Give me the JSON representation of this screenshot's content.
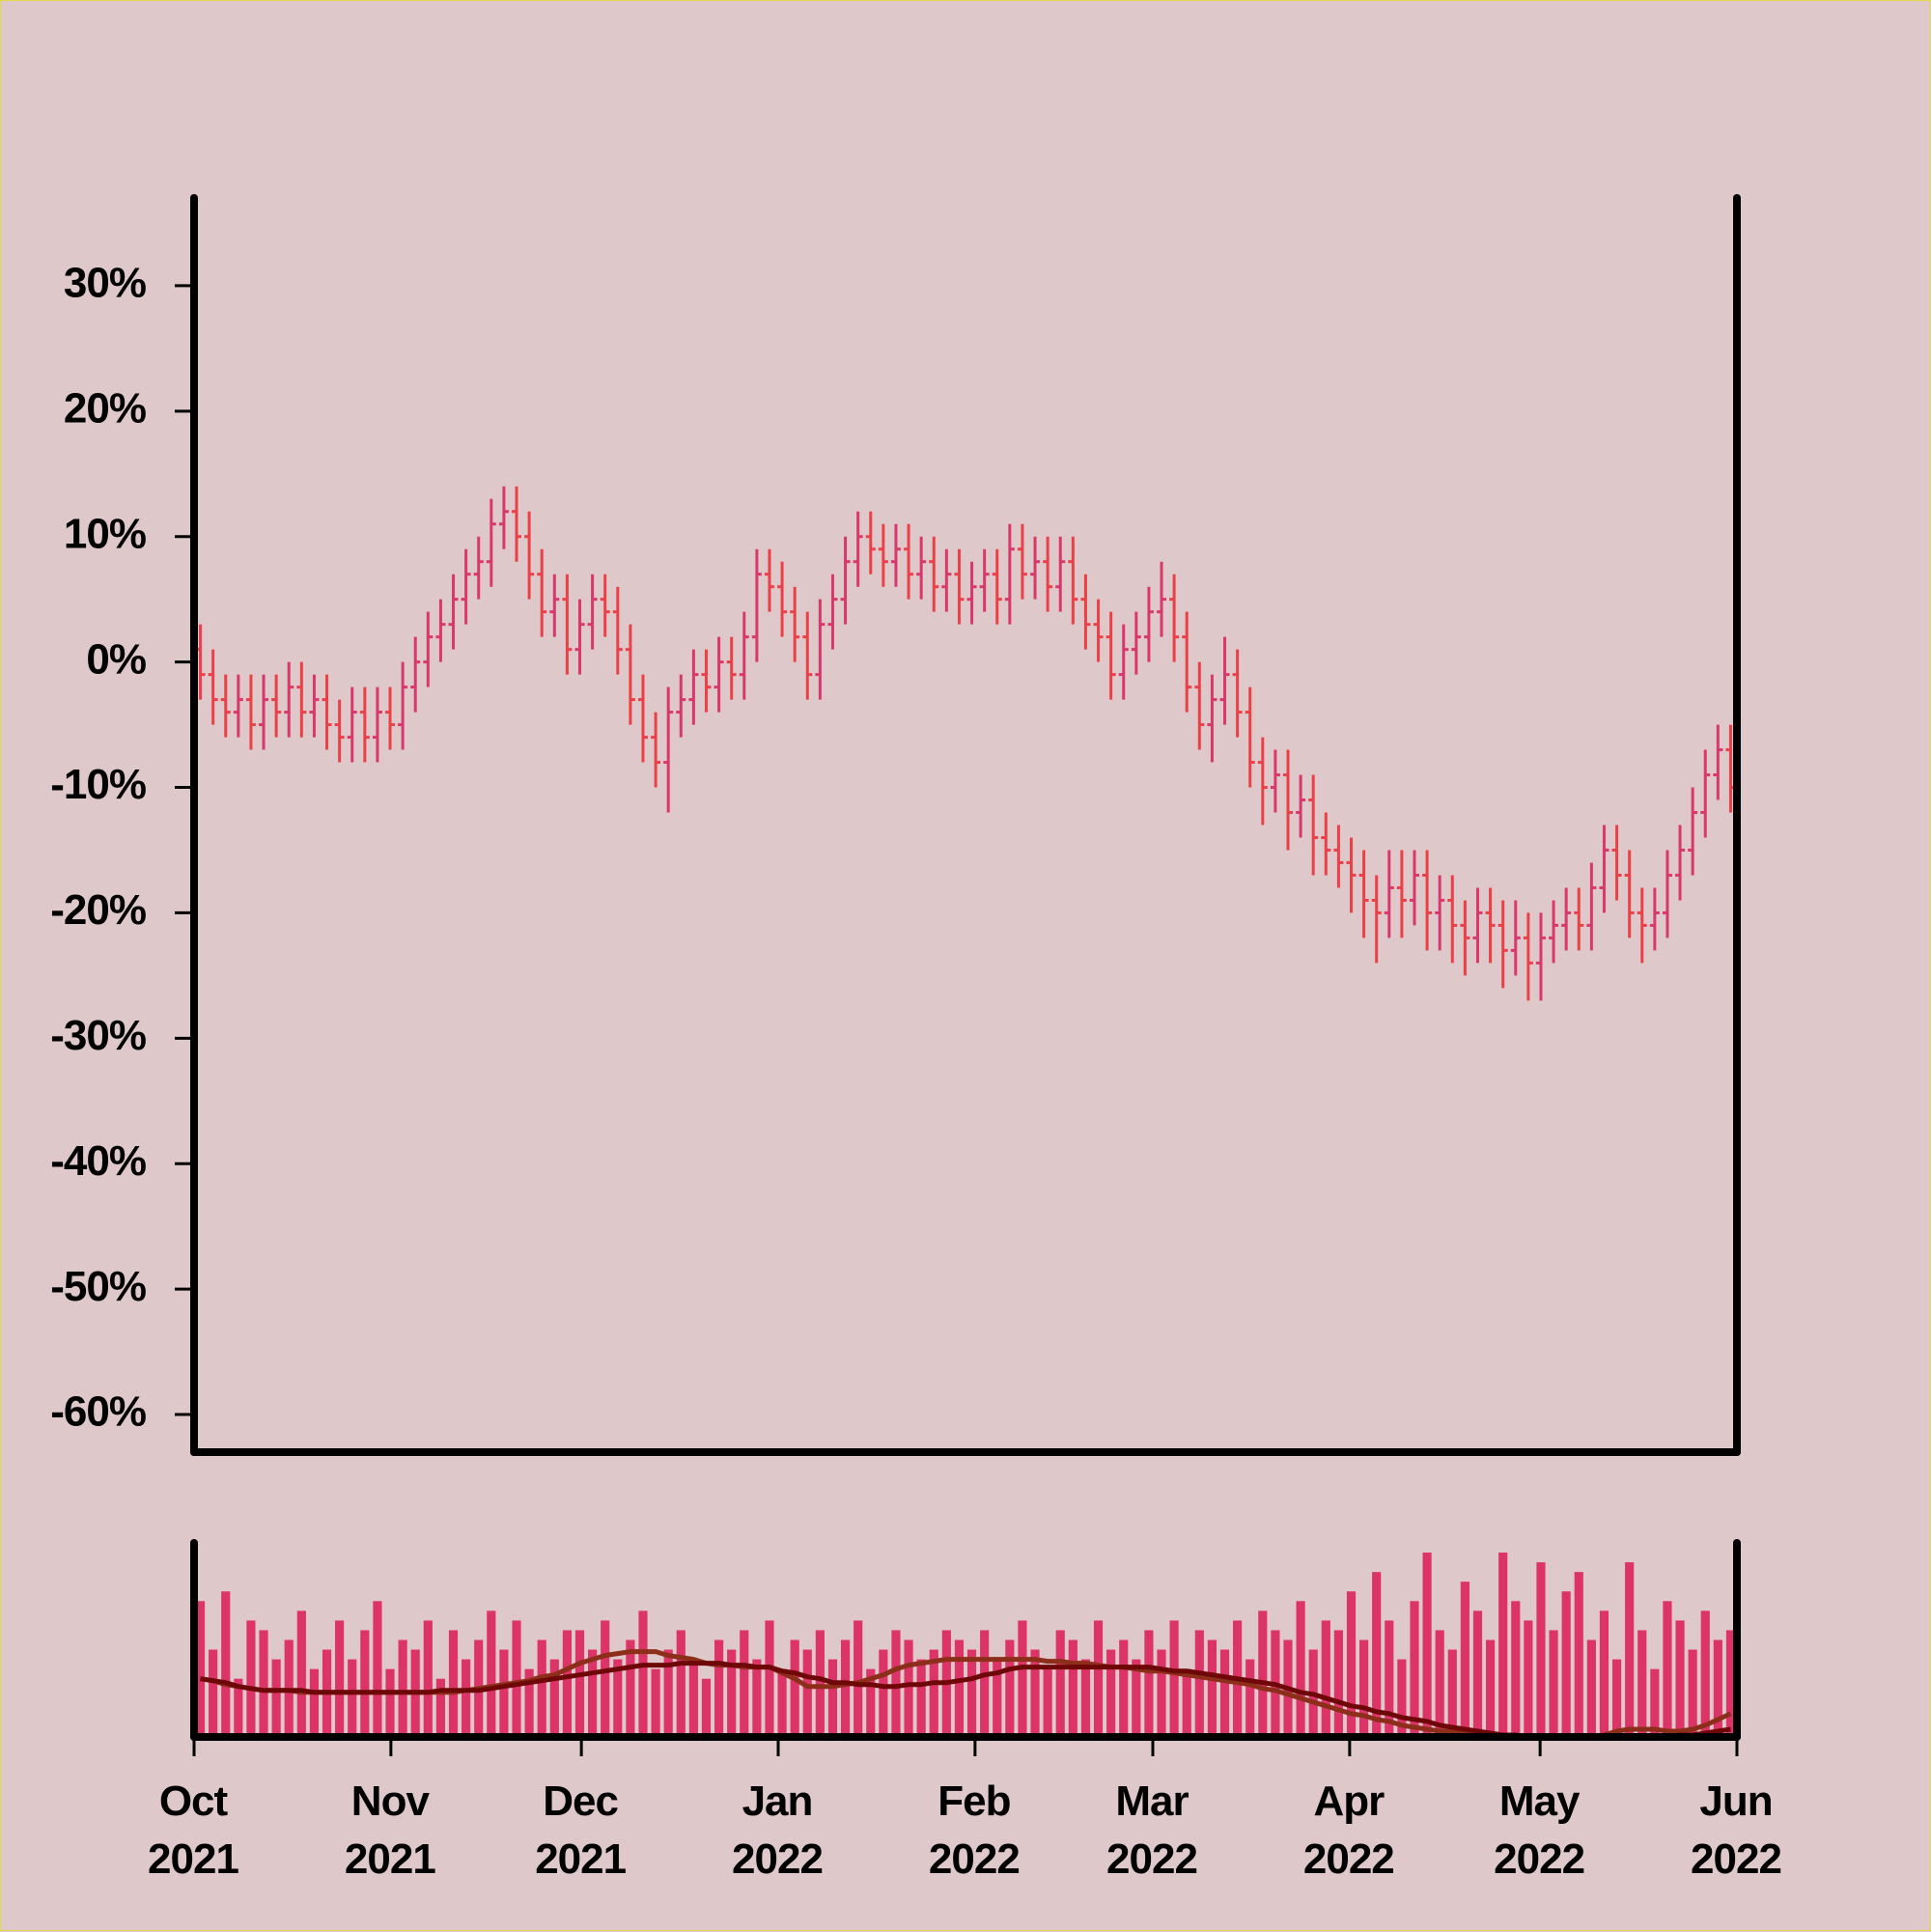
{
  "chart_data": [
    {
      "type": "ohlc",
      "xlim": [
        0,
        243
      ],
      "ylim": [
        -63,
        37
      ],
      "yticks": [
        {
          "value": 30,
          "label": "30%"
        },
        {
          "value": 20,
          "label": "20%"
        },
        {
          "value": 10,
          "label": "10%"
        },
        {
          "value": 0,
          "label": "0%"
        },
        {
          "value": -10,
          "label": "-10%"
        },
        {
          "value": -20,
          "label": "-20%"
        },
        {
          "value": -30,
          "label": "-30%"
        },
        {
          "value": -40,
          "label": "-40%"
        },
        {
          "value": -50,
          "label": "-50%"
        },
        {
          "value": -60,
          "label": "-60%"
        }
      ],
      "up_color": "#d8386c",
      "down_color": "#ec4048",
      "open": [
        1,
        -1,
        -3,
        -4,
        -3,
        -5,
        -3,
        -4,
        -2,
        -4,
        -3,
        -5,
        -6,
        -4,
        -6,
        -4,
        -5,
        -2,
        0,
        2,
        3,
        5,
        7,
        8,
        11,
        12,
        10,
        7,
        4,
        5,
        1,
        3,
        5,
        4,
        1,
        -3,
        -6,
        -8,
        -4,
        -3,
        -1,
        -2,
        0,
        -1,
        2,
        7,
        6,
        4,
        2,
        -1,
        3,
        5,
        8,
        10,
        9,
        8,
        9,
        7,
        8,
        6,
        7,
        5,
        6,
        7,
        5,
        9,
        7,
        8,
        6,
        8,
        5,
        3,
        2,
        -1,
        1,
        2,
        4,
        5,
        2,
        -2,
        -5,
        -3,
        -1,
        -4,
        -8,
        -10,
        -9,
        -12,
        -11,
        -14,
        -15,
        -16,
        -17,
        -19,
        -20,
        -18,
        -19,
        -17,
        -20,
        -19,
        -21,
        -22,
        -20,
        -21,
        -23,
        -22,
        -24,
        -22,
        -21,
        -20,
        -21,
        -18,
        -15,
        -17,
        -20,
        -21,
        -20,
        -17,
        -15,
        -12,
        -9,
        -7
      ],
      "high": [
        3,
        1,
        -1,
        -1,
        -1,
        -1,
        -1,
        0,
        0,
        -1,
        -1,
        -3,
        -2,
        -2,
        -2,
        -2,
        0,
        2,
        4,
        5,
        7,
        9,
        10,
        13,
        14,
        14,
        12,
        9,
        7,
        7,
        5,
        7,
        7,
        6,
        3,
        -1,
        -4,
        -2,
        -1,
        1,
        1,
        2,
        2,
        4,
        9,
        9,
        8,
        6,
        4,
        5,
        7,
        10,
        12,
        12,
        11,
        11,
        11,
        10,
        10,
        9,
        9,
        8,
        9,
        9,
        11,
        11,
        10,
        10,
        10,
        10,
        7,
        5,
        4,
        3,
        4,
        6,
        8,
        7,
        4,
        0,
        -1,
        2,
        1,
        -2,
        -6,
        -7,
        -7,
        -9,
        -9,
        -12,
        -13,
        -14,
        -15,
        -17,
        -15,
        -15,
        -15,
        -15,
        -17,
        -17,
        -19,
        -18,
        -18,
        -19,
        -19,
        -20,
        -20,
        -19,
        -18,
        -18,
        -16,
        -13,
        -13,
        -15,
        -18,
        -18,
        -15,
        -13,
        -10,
        -7,
        -5,
        -5
      ],
      "low": [
        -3,
        -5,
        -6,
        -6,
        -7,
        -7,
        -6,
        -6,
        -6,
        -6,
        -7,
        -8,
        -8,
        -8,
        -8,
        -7,
        -7,
        -4,
        -2,
        0,
        1,
        3,
        5,
        6,
        9,
        8,
        5,
        2,
        2,
        -1,
        -1,
        1,
        2,
        -1,
        -5,
        -8,
        -10,
        -12,
        -6,
        -5,
        -4,
        -4,
        -3,
        -3,
        0,
        4,
        2,
        0,
        -3,
        -3,
        1,
        3,
        6,
        7,
        6,
        6,
        5,
        5,
        4,
        4,
        3,
        3,
        4,
        3,
        3,
        5,
        5,
        4,
        4,
        3,
        1,
        0,
        -3,
        -3,
        -1,
        0,
        2,
        0,
        -4,
        -7,
        -8,
        -5,
        -6,
        -10,
        -13,
        -12,
        -15,
        -14,
        -17,
        -17,
        -18,
        -20,
        -22,
        -24,
        -22,
        -22,
        -21,
        -23,
        -23,
        -24,
        -25,
        -24,
        -24,
        -26,
        -25,
        -27,
        -27,
        -24,
        -23,
        -23,
        -23,
        -20,
        -19,
        -22,
        -24,
        -23,
        -22,
        -19,
        -17,
        -14,
        -11,
        -12
      ],
      "close": [
        -1,
        -3,
        -4,
        -3,
        -5,
        -3,
        -4,
        -2,
        -4,
        -3,
        -5,
        -6,
        -4,
        -6,
        -4,
        -5,
        -2,
        0,
        2,
        3,
        5,
        7,
        8,
        11,
        12,
        10,
        7,
        4,
        5,
        1,
        3,
        5,
        4,
        1,
        -3,
        -6,
        -8,
        -4,
        -3,
        -1,
        -2,
        0,
        -1,
        2,
        7,
        6,
        4,
        2,
        -1,
        3,
        5,
        8,
        10,
        9,
        8,
        9,
        7,
        8,
        6,
        7,
        5,
        6,
        7,
        5,
        9,
        7,
        8,
        6,
        8,
        5,
        3,
        2,
        -1,
        1,
        2,
        4,
        5,
        2,
        -2,
        -5,
        -3,
        -1,
        -4,
        -8,
        -10,
        -9,
        -12,
        -11,
        -14,
        -15,
        -16,
        -17,
        -19,
        -20,
        -18,
        -19,
        -17,
        -20,
        -19,
        -21,
        -22,
        -20,
        -21,
        -23,
        -22,
        -24,
        -22,
        -21,
        -20,
        -21,
        -18,
        -15,
        -17,
        -20,
        -21,
        -20,
        -17,
        -15,
        -12,
        -9,
        -7,
        -10
      ]
    },
    {
      "type": "bar",
      "xlim": [
        0,
        243
      ],
      "ylim": [
        0,
        100
      ],
      "xticks": [
        {
          "value": 0,
          "label": "Oct 2021"
        },
        {
          "value": 31,
          "label": "Nov 2021"
        },
        {
          "value": 61,
          "label": "Dec 2021"
        },
        {
          "value": 92,
          "label": "Jan 2022"
        },
        {
          "value": 123,
          "label": "Feb 2022"
        },
        {
          "value": 151,
          "label": "Mar 2022"
        },
        {
          "value": 182,
          "label": "Apr 2022"
        },
        {
          "value": 212,
          "label": "May 2022"
        },
        {
          "value": 243,
          "label": "Jun 2022"
        }
      ],
      "color": "#dc3468",
      "values": [
        70,
        45,
        75,
        30,
        60,
        55,
        40,
        50,
        65,
        35,
        45,
        60,
        40,
        55,
        70,
        35,
        50,
        45,
        60,
        30,
        55,
        40,
        50,
        65,
        45,
        60,
        35,
        50,
        40,
        55,
        55,
        45,
        60,
        40,
        50,
        65,
        35,
        45,
        55,
        40,
        30,
        50,
        45,
        55,
        40,
        60,
        35,
        50,
        45,
        55,
        40,
        50,
        60,
        35,
        45,
        55,
        50,
        40,
        45,
        55,
        50,
        45,
        55,
        40,
        50,
        60,
        45,
        35,
        55,
        50,
        40,
        60,
        45,
        50,
        40,
        55,
        45,
        60,
        35,
        55,
        50,
        45,
        60,
        40,
        65,
        55,
        50,
        70,
        45,
        60,
        55,
        75,
        50,
        85,
        60,
        40,
        70,
        95,
        55,
        45,
        80,
        65,
        50,
        95,
        70,
        60,
        90,
        55,
        75,
        85,
        50,
        65,
        40,
        90,
        55,
        35,
        70,
        60,
        45,
        65,
        50,
        55
      ],
      "series": [
        {
          "color": "#8c2e1a",
          "values": [
            30,
            29,
            27,
            26,
            25,
            24,
            24,
            24,
            23,
            23,
            23,
            23,
            23,
            23,
            23,
            23,
            23,
            23,
            23,
            23,
            23,
            24,
            25,
            26,
            27,
            28,
            29,
            31,
            32,
            35,
            38,
            40,
            42,
            43,
            44,
            44,
            44,
            42,
            41,
            40,
            38,
            37,
            37,
            36,
            36,
            36,
            33,
            30,
            26,
            26,
            26,
            27,
            28,
            30,
            32,
            35,
            37,
            38,
            39,
            40,
            40,
            40,
            40,
            40,
            40,
            40,
            40,
            39,
            39,
            38,
            38,
            37,
            36,
            36,
            35,
            34,
            34,
            33,
            32,
            31,
            30,
            29,
            28,
            27,
            25,
            24,
            22,
            20,
            18,
            16,
            14,
            12,
            11,
            9,
            8,
            6,
            5,
            4,
            3,
            3,
            2,
            2,
            1,
            1,
            0,
            0,
            0,
            0,
            0,
            0,
            0,
            1,
            3,
            4,
            4,
            4,
            3,
            3,
            4,
            6,
            9,
            12
          ]
        },
        {
          "color": "#6e0808",
          "values": [
            30,
            29,
            28,
            26,
            25,
            24,
            24,
            24,
            24,
            23,
            23,
            23,
            23,
            23,
            23,
            23,
            23,
            23,
            23,
            24,
            24,
            24,
            24,
            25,
            26,
            27,
            28,
            29,
            30,
            31,
            32,
            33,
            34,
            35,
            36,
            37,
            37,
            37,
            38,
            38,
            38,
            38,
            37,
            37,
            36,
            36,
            34,
            33,
            31,
            30,
            28,
            28,
            27,
            27,
            26,
            26,
            27,
            27,
            28,
            28,
            29,
            30,
            32,
            33,
            35,
            36,
            36,
            36,
            36,
            36,
            36,
            36,
            36,
            36,
            36,
            36,
            35,
            34,
            34,
            33,
            32,
            31,
            30,
            29,
            28,
            27,
            25,
            23,
            22,
            20,
            18,
            16,
            15,
            13,
            12,
            10,
            9,
            8,
            6,
            5,
            4,
            3,
            2,
            1,
            1,
            0,
            0,
            0,
            0,
            0,
            0,
            0,
            0,
            0,
            0,
            0,
            0,
            1,
            1,
            2,
            3,
            4
          ]
        }
      ]
    }
  ]
}
